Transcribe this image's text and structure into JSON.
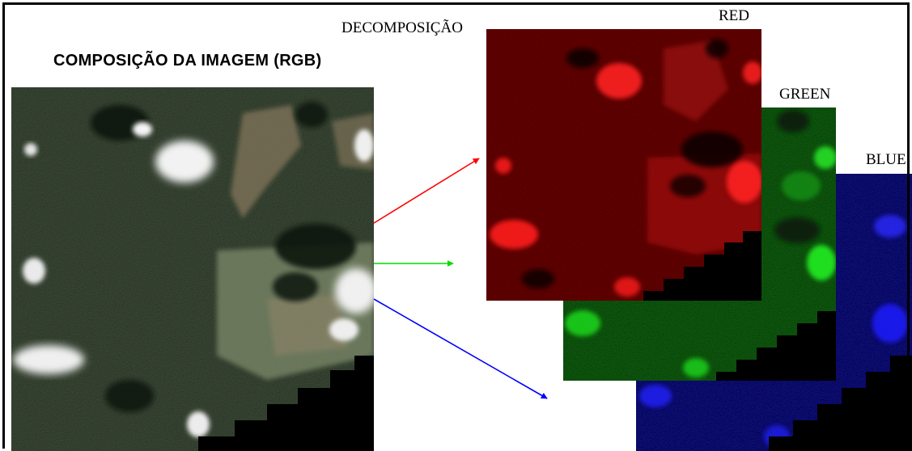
{
  "title": "COMPOSIÇÃO DA IMAGEM (RGB)",
  "decomposition_label": "DECOMPOSIÇÃO",
  "channels": {
    "red": {
      "label": "RED",
      "color": "#ff0000"
    },
    "green": {
      "label": "GREEN",
      "color": "#00dd00"
    },
    "blue": {
      "label": "BLUE",
      "color": "#0000ff"
    }
  }
}
